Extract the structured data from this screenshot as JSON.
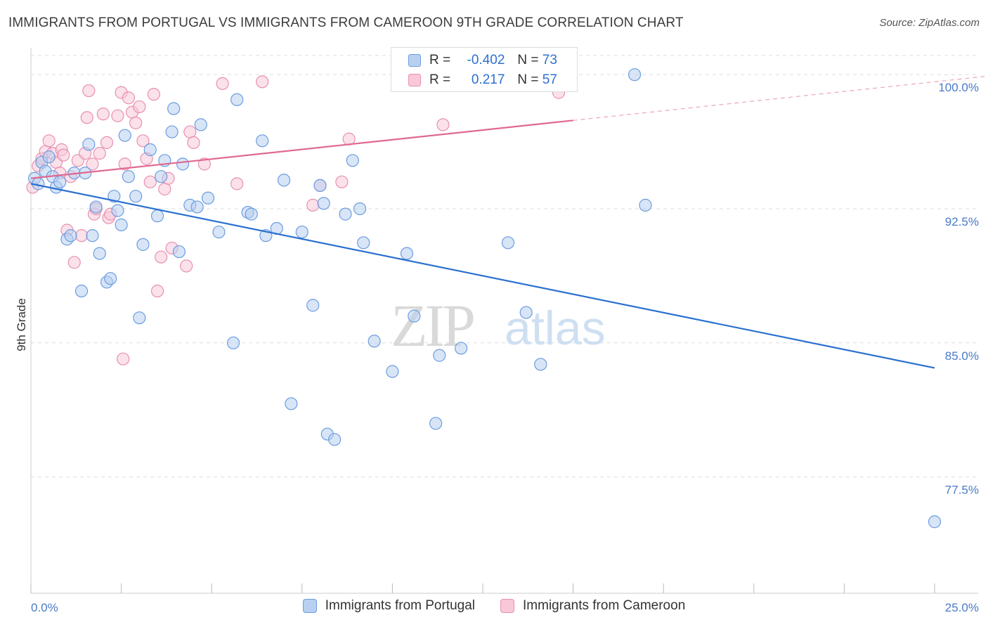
{
  "header": {
    "title": "IMMIGRANTS FROM PORTUGAL VS IMMIGRANTS FROM CAMEROON 9TH GRADE CORRELATION CHART",
    "source": "Source: ZipAtlas.com"
  },
  "watermark": {
    "zip": "ZIP",
    "atlas": "atlas"
  },
  "legend": {
    "row1": {
      "r_label": "R =",
      "r_value": "-0.402",
      "n_label": "N =",
      "n_value": "73"
    },
    "row2": {
      "r_label": "R =",
      "r_value": "0.217",
      "n_label": "N =",
      "n_value": "57"
    }
  },
  "colors": {
    "blue_fill": "#b8d0f0",
    "blue_stroke": "#6b9de0",
    "blue_line": "#2a70d0",
    "pink_fill": "#f8c8d8",
    "pink_stroke": "#e890b0",
    "pink_line": "#e06890"
  },
  "chart_data": {
    "type": "scatter",
    "ylabel": "9th Grade",
    "xlim": [
      0,
      25
    ],
    "ylim": [
      71.0,
      101.5
    ],
    "x_tick_labels": [
      "0.0%",
      "25.0%"
    ],
    "y_ticks": [
      {
        "value": 100.0,
        "label": "100.0%"
      },
      {
        "value": 92.5,
        "label": "92.5%"
      },
      {
        "value": 85.0,
        "label": "85.0%"
      },
      {
        "value": 77.5,
        "label": "77.5%"
      }
    ],
    "series": [
      {
        "name": "Immigrants from Portugal",
        "color": "blue",
        "trend": {
          "x0": 0.0,
          "y0": 93.9,
          "x1": 25.0,
          "y1": 83.6,
          "dash_from": null
        },
        "points": [
          [
            0.1,
            94.2
          ],
          [
            0.2,
            93.9
          ],
          [
            0.3,
            95.1
          ],
          [
            0.4,
            94.6
          ],
          [
            0.5,
            95.4
          ],
          [
            0.6,
            94.3
          ],
          [
            0.7,
            93.7
          ],
          [
            0.8,
            94.0
          ],
          [
            1.0,
            90.8
          ],
          [
            1.1,
            91.0
          ],
          [
            1.2,
            94.5
          ],
          [
            1.4,
            87.9
          ],
          [
            1.5,
            94.5
          ],
          [
            1.6,
            96.1
          ],
          [
            1.7,
            91.0
          ],
          [
            1.8,
            92.6
          ],
          [
            1.9,
            90.0
          ],
          [
            2.1,
            88.4
          ],
          [
            2.2,
            88.6
          ],
          [
            2.3,
            93.2
          ],
          [
            2.4,
            92.4
          ],
          [
            2.5,
            91.6
          ],
          [
            2.6,
            96.6
          ],
          [
            2.7,
            94.3
          ],
          [
            2.9,
            93.2
          ],
          [
            3.0,
            86.4
          ],
          [
            3.1,
            90.5
          ],
          [
            3.3,
            95.8
          ],
          [
            3.5,
            92.1
          ],
          [
            3.6,
            94.3
          ],
          [
            3.7,
            95.2
          ],
          [
            3.9,
            96.8
          ],
          [
            3.95,
            98.1
          ],
          [
            4.1,
            90.1
          ],
          [
            4.2,
            95.0
          ],
          [
            4.4,
            92.7
          ],
          [
            4.6,
            92.6
          ],
          [
            4.7,
            97.2
          ],
          [
            4.9,
            93.1
          ],
          [
            5.2,
            91.2
          ],
          [
            5.6,
            85.0
          ],
          [
            5.7,
            98.6
          ],
          [
            6.0,
            92.3
          ],
          [
            6.1,
            92.2
          ],
          [
            6.4,
            96.3
          ],
          [
            6.5,
            91.0
          ],
          [
            6.8,
            91.4
          ],
          [
            7.0,
            94.1
          ],
          [
            7.2,
            81.6
          ],
          [
            7.5,
            91.2
          ],
          [
            7.8,
            87.1
          ],
          [
            8.0,
            93.8
          ],
          [
            8.1,
            92.8
          ],
          [
            8.2,
            79.9
          ],
          [
            8.4,
            79.6
          ],
          [
            8.7,
            92.2
          ],
          [
            8.9,
            95.2
          ],
          [
            9.1,
            92.5
          ],
          [
            9.2,
            90.6
          ],
          [
            9.5,
            85.1
          ],
          [
            10.0,
            83.4
          ],
          [
            10.4,
            90.0
          ],
          [
            10.6,
            86.5
          ],
          [
            11.2,
            80.5
          ],
          [
            11.3,
            84.3
          ],
          [
            11.9,
            84.7
          ],
          [
            13.2,
            90.6
          ],
          [
            13.7,
            86.7
          ],
          [
            14.1,
            83.8
          ],
          [
            16.7,
            100.0
          ],
          [
            17.0,
            92.7
          ],
          [
            25.0,
            75.0
          ],
          [
            14.5,
            100.0
          ]
        ]
      },
      {
        "name": "Immigrants from Cameroon",
        "color": "pink",
        "trend": {
          "x0": 0.0,
          "y0": 94.2,
          "x1": 25.0,
          "y1": 99.6,
          "dash_from": 15.0
        },
        "points": [
          [
            0.05,
            93.7
          ],
          [
            0.2,
            94.9
          ],
          [
            0.3,
            95.3
          ],
          [
            0.4,
            95.7
          ],
          [
            0.5,
            96.3
          ],
          [
            0.6,
            95.6
          ],
          [
            0.7,
            95.1
          ],
          [
            0.8,
            94.5
          ],
          [
            0.85,
            95.8
          ],
          [
            0.9,
            95.5
          ],
          [
            1.0,
            91.3
          ],
          [
            1.1,
            94.3
          ],
          [
            1.2,
            89.5
          ],
          [
            1.3,
            95.2
          ],
          [
            1.4,
            91.0
          ],
          [
            1.5,
            95.6
          ],
          [
            1.55,
            97.6
          ],
          [
            1.6,
            99.1
          ],
          [
            1.7,
            95.0
          ],
          [
            1.75,
            92.2
          ],
          [
            1.8,
            92.5
          ],
          [
            1.9,
            95.6
          ],
          [
            2.0,
            97.8
          ],
          [
            2.1,
            96.2
          ],
          [
            2.15,
            92.0
          ],
          [
            2.2,
            92.2
          ],
          [
            2.4,
            97.7
          ],
          [
            2.5,
            99.0
          ],
          [
            2.55,
            84.1
          ],
          [
            2.6,
            95.0
          ],
          [
            2.7,
            98.7
          ],
          [
            2.8,
            97.9
          ],
          [
            2.9,
            97.3
          ],
          [
            3.0,
            98.2
          ],
          [
            3.1,
            96.3
          ],
          [
            3.2,
            95.3
          ],
          [
            3.3,
            94.0
          ],
          [
            3.4,
            98.9
          ],
          [
            3.5,
            87.9
          ],
          [
            3.6,
            89.8
          ],
          [
            3.7,
            93.6
          ],
          [
            3.8,
            94.2
          ],
          [
            3.9,
            90.3
          ],
          [
            4.3,
            89.3
          ],
          [
            4.4,
            96.8
          ],
          [
            4.5,
            96.2
          ],
          [
            5.3,
            99.5
          ],
          [
            5.7,
            93.9
          ],
          [
            6.4,
            99.6
          ],
          [
            7.8,
            92.7
          ],
          [
            8.0,
            93.8
          ],
          [
            8.6,
            94.0
          ],
          [
            8.8,
            96.4
          ],
          [
            11.4,
            97.2
          ],
          [
            11.6,
            100.0
          ],
          [
            14.6,
            99.0
          ],
          [
            4.8,
            95.0
          ]
        ]
      }
    ]
  },
  "bottom_legend": {
    "item1": "Immigrants from Portugal",
    "item2": "Immigrants from Cameroon"
  }
}
